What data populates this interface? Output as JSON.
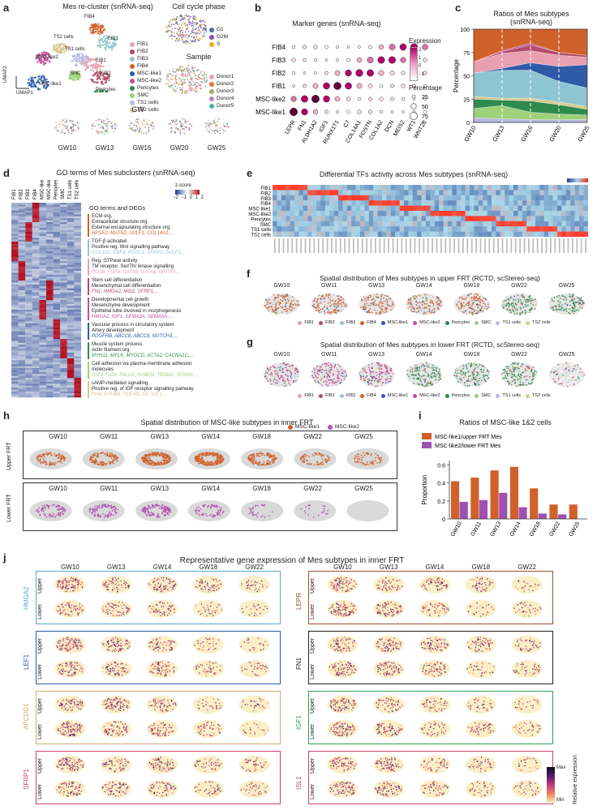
{
  "panel_a": {
    "label": "a",
    "title_left": "Mes re-cluster (snRNA-seq)",
    "title_cc": "Cell cycle phase",
    "title_sample": "Sample",
    "title_gw": "GW",
    "umap1": "UMAP1",
    "umap2": "UMAP2",
    "cluster_labels": [
      "FIB4",
      "TS2 cells",
      "TS1 cells",
      "MSC-like2",
      "FIB3",
      "FIB1",
      "SMC",
      "FIB2",
      "MSC-like1",
      "Pericytes"
    ],
    "legend": [
      {
        "name": "FIB1",
        "color": "#e8a0b0"
      },
      {
        "name": "FIB2",
        "color": "#b44a6a"
      },
      {
        "name": "FIB3",
        "color": "#8fc5d0"
      },
      {
        "name": "FIB4",
        "color": "#d0612a"
      },
      {
        "name": "MSC-like1",
        "color": "#2e5aa8"
      },
      {
        "name": "MSC-like2",
        "color": "#c04f9c"
      },
      {
        "name": "Pericytes",
        "color": "#2f8a4e"
      },
      {
        "name": "SMC",
        "color": "#9fd07a"
      },
      {
        "name": "TS1 cells",
        "color": "#b8b8e0"
      },
      {
        "name": "TS2 cells",
        "color": "#d9c88f"
      }
    ],
    "cc_legend": [
      {
        "name": "G1",
        "color": "#4a6fb0"
      },
      {
        "name": "G2M",
        "color": "#8e44ad"
      },
      {
        "name": "S",
        "color": "#e0b020"
      }
    ],
    "sample_legend": [
      {
        "name": "Donor1",
        "color": "#e8a0b0"
      },
      {
        "name": "Donor2",
        "color": "#e07a3a"
      },
      {
        "name": "Donor3",
        "color": "#9fb060"
      },
      {
        "name": "Donor4",
        "color": "#c080c0"
      },
      {
        "name": "Donor5",
        "color": "#50b0a0"
      }
    ],
    "gw_labels": [
      "GW10",
      "GW13",
      "GW16",
      "GW20",
      "GW25"
    ]
  },
  "panel_b": {
    "label": "b",
    "title": "Marker genes (snRNA-seq)",
    "rows": [
      "FIB4",
      "FIB3",
      "FIB2",
      "FIB1",
      "MSC-like2",
      "MSC-like1"
    ],
    "cols": [
      "LEPR",
      "FN1",
      "ALDH1A2",
      "IGF1",
      "RUNX1T1",
      "C7",
      "COL14A1",
      "POSTN",
      "COL1A2",
      "DCN",
      "MEIS2",
      "WT1",
      "WNT2B"
    ],
    "legend_expr": "Expression",
    "expr_ticks": [
      "2",
      "1",
      "0",
      "−1"
    ],
    "legend_pct": "Percentage",
    "pct_ticks": [
      "25",
      "50",
      "75"
    ]
  },
  "panel_c": {
    "label": "c",
    "title": "Ratios of Mes subtypes (snRNA-seq)",
    "ylabel": "Percentage",
    "yticks": [
      "0",
      "25",
      "50",
      "75",
      "100"
    ]
  },
  "panel_d": {
    "label": "d",
    "title": "GO terms of Mes subclusters (snRNA-seq)",
    "cols": [
      "FIB1",
      "FIB2",
      "FIB3",
      "FIB4",
      "MSC-like1",
      "MSC-like2",
      "Pericytes",
      "SMC",
      "TS1 cells",
      "TS2 cells"
    ],
    "zscore": "z-score",
    "z_ticks": [
      "−2",
      "−1",
      "0",
      "1",
      "2"
    ],
    "header": "GO terms and DEGs",
    "groups": [
      {
        "color": "#d0612a",
        "terms": [
          "ECM org.",
          "Extracellular structure org.",
          "External encapsulating structure org."
        ],
        "genes": "HPSE2, MATN2, SULF1, COL14A1,..."
      },
      {
        "color": "#8fc5d0",
        "terms": [
          "TGF-β activated",
          "Positive reg. Wnt signalling pathway"
        ],
        "genes": "COL1A1, EBF2, RSPO1, SFRP2, SULF1,..."
      },
      {
        "color": "#e8a0b0",
        "terms": [
          "Reg. GTPase activity",
          "TM receptor. Ser/Thr kinase signalling"
        ],
        "genes": "RGS6, FGF9, GATA6, GATA4, WNT5A..."
      },
      {
        "color": "#b44a6a",
        "terms": [
          "Stem cell differentiation",
          "Mesenchymal cell differentiation"
        ],
        "genes": "FN1, HMGA2, MSI2, SFRP1,..."
      },
      {
        "color": "#c04f9c",
        "terms": [
          "Developmental cell growth",
          "Mesenchyme development",
          "Epithelial tube involved in morphogenesis"
        ],
        "genes": "HMGA2, IGF1, SEMA3A, SEMA5A,..."
      },
      {
        "color": "#2e5aa8",
        "terms": [
          "Vascular process in circulatory system",
          "Artery development"
        ],
        "genes": "PDGFRB, ABCC8, ABCC9, NOTCH3,..."
      },
      {
        "color": "#2f8a4e",
        "terms": [
          "Muscle system process",
          "Actin filament org."
        ],
        "genes": "MYH11, MYLK, MYOCD, ACTA2, CACNA1C,..."
      },
      {
        "color": "#9fd07a",
        "terms": [
          "Cell adhesion via plasma-membrane adhesion",
          "molecules"
        ],
        "genes": "FAT3, FAT4, PALLD, ROBO2, TENM2, TENM3,..."
      },
      {
        "color": "#d9c88f",
        "terms": [
          "cAMP-mediated signalling",
          "Positive reg. of IGF receptor signalling pathway"
        ],
        "genes": "PHK, EPHB6, PDE4D, AR, IGF1,..."
      }
    ]
  },
  "panel_e": {
    "label": "e",
    "title": "Differential TFs activity across Mes subtypes (snRNA-seq)",
    "rows": [
      "FIB1",
      "FIB2",
      "FIB3",
      "FIB4",
      "MSC-like1",
      "MSC-like2",
      "Pericytes",
      "SMC",
      "TS1 cells",
      "TS2 cells"
    ],
    "scale_ticks": [
      "−2",
      "0",
      "2"
    ]
  },
  "panel_f": {
    "label": "f",
    "title": "Spatial distribution of Mes subtypes in upper FRT (RCTD, scStereo-seq)",
    "gws": [
      "GW10",
      "GW11",
      "GW13",
      "GW14",
      "GW18",
      "GW22",
      "GW25"
    ]
  },
  "panel_g": {
    "label": "g",
    "title": "Spatial distribution of Mes subtypes in lower FRT (RCTD, scStereo-seq)",
    "gws": [
      "GW10",
      "GW11",
      "GW13",
      "GW14",
      "GW18",
      "GW22",
      "GW25"
    ]
  },
  "fg_legend": [
    "FIB1",
    "FIB2",
    "FIB3",
    "FIB4",
    "MSC-like1",
    "MSC-like2",
    "Pericytes",
    "SMC",
    "TS1 cells",
    "TS2 cells"
  ],
  "panel_h": {
    "label": "h",
    "title": "Spatial distribution of MSC-like subtypes in inner FRT",
    "legend1": "MSC-like1",
    "legend2": "MSC-like2",
    "upper": "Upper FRT",
    "lower": "Lower FRT",
    "gws": [
      "GW10",
      "GW11",
      "GW13",
      "GW14",
      "GW18",
      "GW22",
      "GW25"
    ]
  },
  "panel_i": {
    "label": "i",
    "title": "Ratios of MSC-like 1&2 cells",
    "legend1": "MSC-like1/upper FRT Mes",
    "legend2": "MSC-like2/lower FRT Mes",
    "ylabel": "Proportion",
    "yticks": [
      "0",
      "0.2",
      "0.4",
      "0.6"
    ]
  },
  "panel_j": {
    "label": "j",
    "title": "Representative gene expression of Mes subtypes in inner FRT",
    "gws": [
      "GW10",
      "GW13",
      "GW14",
      "GW18",
      "GW22"
    ],
    "upper": "Upper",
    "lower": "Lower",
    "genes_left": [
      {
        "name": "HMGA2",
        "color": "#5aa8d8"
      },
      {
        "name": "LEF1",
        "color": "#2e5aa8"
      },
      {
        "name": "APCDD1",
        "color": "#d9a86a"
      },
      {
        "name": "SFRP1",
        "color": "#d04070"
      }
    ],
    "genes_right": [
      {
        "name": "LEPR",
        "color": "#a05030"
      },
      {
        "name": "FN1",
        "color": "#222222"
      },
      {
        "name": "IGF1",
        "color": "#30a050"
      },
      {
        "name": "ISL1",
        "color": "#d04070"
      }
    ],
    "cbar_max": "Max",
    "cbar_min": "Min",
    "cbar_label": "Relative expression"
  },
  "chart_data": [
    {
      "type": "area",
      "title": "Ratios of Mes subtypes (snRNA-seq)",
      "categories": [
        "GW10",
        "GW13",
        "GW16",
        "GW20",
        "GW25"
      ],
      "ylabel": "Percentage",
      "ylim": [
        0,
        100
      ],
      "series": [
        {
          "name": "TS1 cells",
          "values": [
            5,
            4,
            3,
            3,
            3
          ]
        },
        {
          "name": "SMC",
          "values": [
            10,
            14,
            8,
            6,
            5
          ]
        },
        {
          "name": "Pericytes",
          "values": [
            10,
            6,
            12,
            10,
            6
          ]
        },
        {
          "name": "TS2 cells",
          "values": [
            3,
            2,
            3,
            3,
            3
          ]
        },
        {
          "name": "FIB3",
          "values": [
            25,
            30,
            30,
            22,
            20
          ]
        },
        {
          "name": "MSC-like1",
          "values": [
            0,
            2,
            8,
            16,
            25
          ]
        },
        {
          "name": "FIB1",
          "values": [
            12,
            16,
            13,
            12,
            8
          ]
        },
        {
          "name": "FIB2",
          "values": [
            0,
            2,
            6,
            3,
            2
          ]
        },
        {
          "name": "MSC-like2",
          "values": [
            0,
            1,
            2,
            0,
            0
          ]
        },
        {
          "name": "FIB4",
          "values": [
            35,
            23,
            15,
            25,
            28
          ]
        }
      ]
    },
    {
      "type": "bar",
      "title": "Ratios of MSC-like 1&2 cells",
      "categories": [
        "GW10",
        "GW11",
        "GW13",
        "GW14",
        "GW18",
        "GW22",
        "GW25"
      ],
      "ylabel": "Proportion",
      "ylim": [
        0,
        0.65
      ],
      "series": [
        {
          "name": "MSC-like1/upper FRT Mes",
          "values": [
            0.42,
            0.46,
            0.54,
            0.58,
            0.34,
            0.16,
            0.16
          ]
        },
        {
          "name": "MSC-like2/lower FRT Mes",
          "values": [
            0.19,
            0.21,
            0.29,
            0.13,
            0.06,
            0.05,
            0
          ]
        }
      ]
    }
  ]
}
